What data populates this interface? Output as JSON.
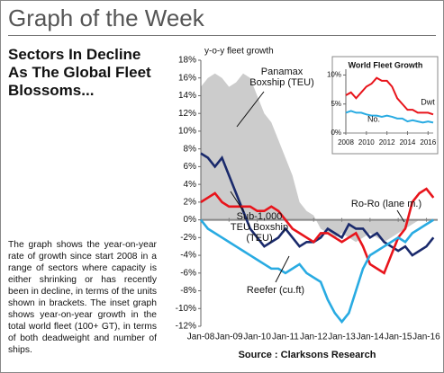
{
  "header": {
    "title": "Graph of the Week"
  },
  "sidebar": {
    "heading": [
      "Sectors In Decline",
      "As The Global Fleet",
      "Blossoms..."
    ],
    "body": "The graph shows the year-on-year rate of growth since start 2008 in a range of sectors where capacity is either shrinking or has recently been in decline, in terms of the units shown in brackets. The inset graph shows year-on-year growth in the total world fleet (100+ GT), in terms of both deadweight and number of ships."
  },
  "source": "Source : Clarksons Research",
  "chart_data": [
    {
      "type": "line",
      "ylabel": "y-o-y fleet growth",
      "x": [
        2008,
        2008.25,
        2008.5,
        2008.75,
        2009,
        2009.25,
        2009.5,
        2009.75,
        2010,
        2010.25,
        2010.5,
        2010.75,
        2011,
        2011.25,
        2011.5,
        2011.75,
        2012,
        2012.25,
        2012.5,
        2012.75,
        2013,
        2013.25,
        2013.5,
        2013.75,
        2014,
        2014.25,
        2014.5,
        2014.75,
        2015,
        2015.25,
        2015.5,
        2015.75,
        2016,
        2016.25
      ],
      "xlim": [
        2008,
        2016.4
      ],
      "xticks": [
        {
          "value": 2008,
          "label": "Jan-08"
        },
        {
          "value": 2009,
          "label": "Jan-09"
        },
        {
          "value": 2010,
          "label": "Jan-10"
        },
        {
          "value": 2011,
          "label": "Jan-11"
        },
        {
          "value": 2012,
          "label": "Jan-12"
        },
        {
          "value": 2013,
          "label": "Jan-13"
        },
        {
          "value": 2014,
          "label": "Jan-14"
        },
        {
          "value": 2015,
          "label": "Jan-15"
        },
        {
          "value": 2016,
          "label": "Jan-16"
        }
      ],
      "ylim": [
        -12,
        18
      ],
      "yticks": [
        {
          "value": -12,
          "label": "-12%"
        },
        {
          "value": -10,
          "label": "-10%"
        },
        {
          "value": -8,
          "label": "-8%"
        },
        {
          "value": -6,
          "label": "-6%"
        },
        {
          "value": -4,
          "label": "-4%"
        },
        {
          "value": -2,
          "label": "-2%"
        },
        {
          "value": 0,
          "label": "0%"
        },
        {
          "value": 2,
          "label": "2%"
        },
        {
          "value": 4,
          "label": "4%"
        },
        {
          "value": 6,
          "label": "6%"
        },
        {
          "value": 8,
          "label": "8%"
        },
        {
          "value": 10,
          "label": "10%"
        },
        {
          "value": 12,
          "label": "12%"
        },
        {
          "value": 14,
          "label": "14%"
        },
        {
          "value": 16,
          "label": "16%"
        },
        {
          "value": 18,
          "label": "18%"
        }
      ],
      "series": [
        {
          "name": [
            "Panamax",
            "Boxship (TEU)"
          ],
          "color": "#cccccc",
          "kind": "area",
          "values": [
            15,
            16,
            16.5,
            16,
            15,
            15.5,
            16.5,
            16,
            14,
            12,
            11,
            9,
            7,
            5,
            2,
            1,
            0.5,
            -1,
            -1.5,
            -2,
            -1.5,
            -2,
            -2.5,
            -2,
            -1.5,
            -2,
            -2.5,
            -2,
            -1.5,
            -1,
            -0.5,
            0,
            0,
            0
          ]
        },
        {
          "name": [
            "Sub-1,000",
            "TEU Boxship",
            "(TEU)"
          ],
          "color": "#1a2a6c",
          "kind": "line",
          "values": [
            7.5,
            7,
            6,
            7,
            5,
            3,
            1,
            -1,
            -2,
            -3,
            -2.5,
            -2,
            -1,
            -2,
            -3,
            -2.5,
            -2.5,
            -2,
            -1,
            -1.5,
            -2,
            -0.5,
            -1,
            -1,
            -2,
            -1.5,
            -2.5,
            -3,
            -3.5,
            -3,
            -4,
            -3.5,
            -3,
            -2
          ]
        },
        {
          "name": [
            "Ro-Ro (lane m.)"
          ],
          "color": "#e8141b",
          "kind": "line",
          "values": [
            2,
            2.5,
            3,
            2,
            1.5,
            1.5,
            1.5,
            1.5,
            1,
            1,
            1.5,
            1,
            0,
            -1,
            -1.5,
            -2,
            -2.5,
            -1.5,
            -1.5,
            -2,
            -2.5,
            -2,
            -1.5,
            -3,
            -5,
            -5.5,
            -6,
            -4,
            -2,
            -1,
            2,
            3,
            3.5,
            2.5
          ]
        },
        {
          "name": [
            "Reefer (cu.ft)"
          ],
          "color": "#29abe2",
          "kind": "line",
          "values": [
            0,
            -1,
            -1.5,
            -2,
            -2.5,
            -3,
            -3.5,
            -4,
            -4.5,
            -5,
            -5.5,
            -5.5,
            -6,
            -5.5,
            -5,
            -6,
            -6.5,
            -7,
            -9,
            -10.5,
            -11.5,
            -10.5,
            -8,
            -5.5,
            -4,
            -3.5,
            -3,
            -2.5,
            -2,
            -2.5,
            -1.5,
            -1,
            -0.5,
            0
          ]
        }
      ]
    },
    {
      "type": "line",
      "title": "World Fleet Growth",
      "x": [
        2008,
        2008.5,
        2009,
        2009.5,
        2010,
        2010.5,
        2011,
        2011.5,
        2012,
        2012.5,
        2013,
        2013.5,
        2014,
        2014.5,
        2015,
        2015.5,
        2016,
        2016.5
      ],
      "xlim": [
        2008,
        2016.5
      ],
      "xticks": [
        2008,
        2010,
        2012,
        2014,
        2016
      ],
      "ylim": [
        0,
        11
      ],
      "yticks": [
        {
          "value": 0,
          "label": "0%"
        },
        {
          "value": 5,
          "label": "5%"
        },
        {
          "value": 10,
          "label": "10%"
        }
      ],
      "series": [
        {
          "name": [
            "Dwt"
          ],
          "color": "#e8141b",
          "kind": "line",
          "values": [
            6.5,
            7,
            6,
            7,
            8,
            8.5,
            9.5,
            9,
            9,
            8,
            6,
            5,
            4,
            4,
            3.5,
            3.5,
            3.5,
            3.2
          ]
        },
        {
          "name": [
            "No."
          ],
          "color": "#29abe2",
          "kind": "line",
          "values": [
            3.5,
            3.8,
            3.5,
            3.5,
            3.2,
            3,
            3,
            2.8,
            3,
            2.8,
            2.5,
            2.5,
            2,
            2.2,
            2,
            1.8,
            2,
            1.8
          ]
        }
      ]
    }
  ]
}
